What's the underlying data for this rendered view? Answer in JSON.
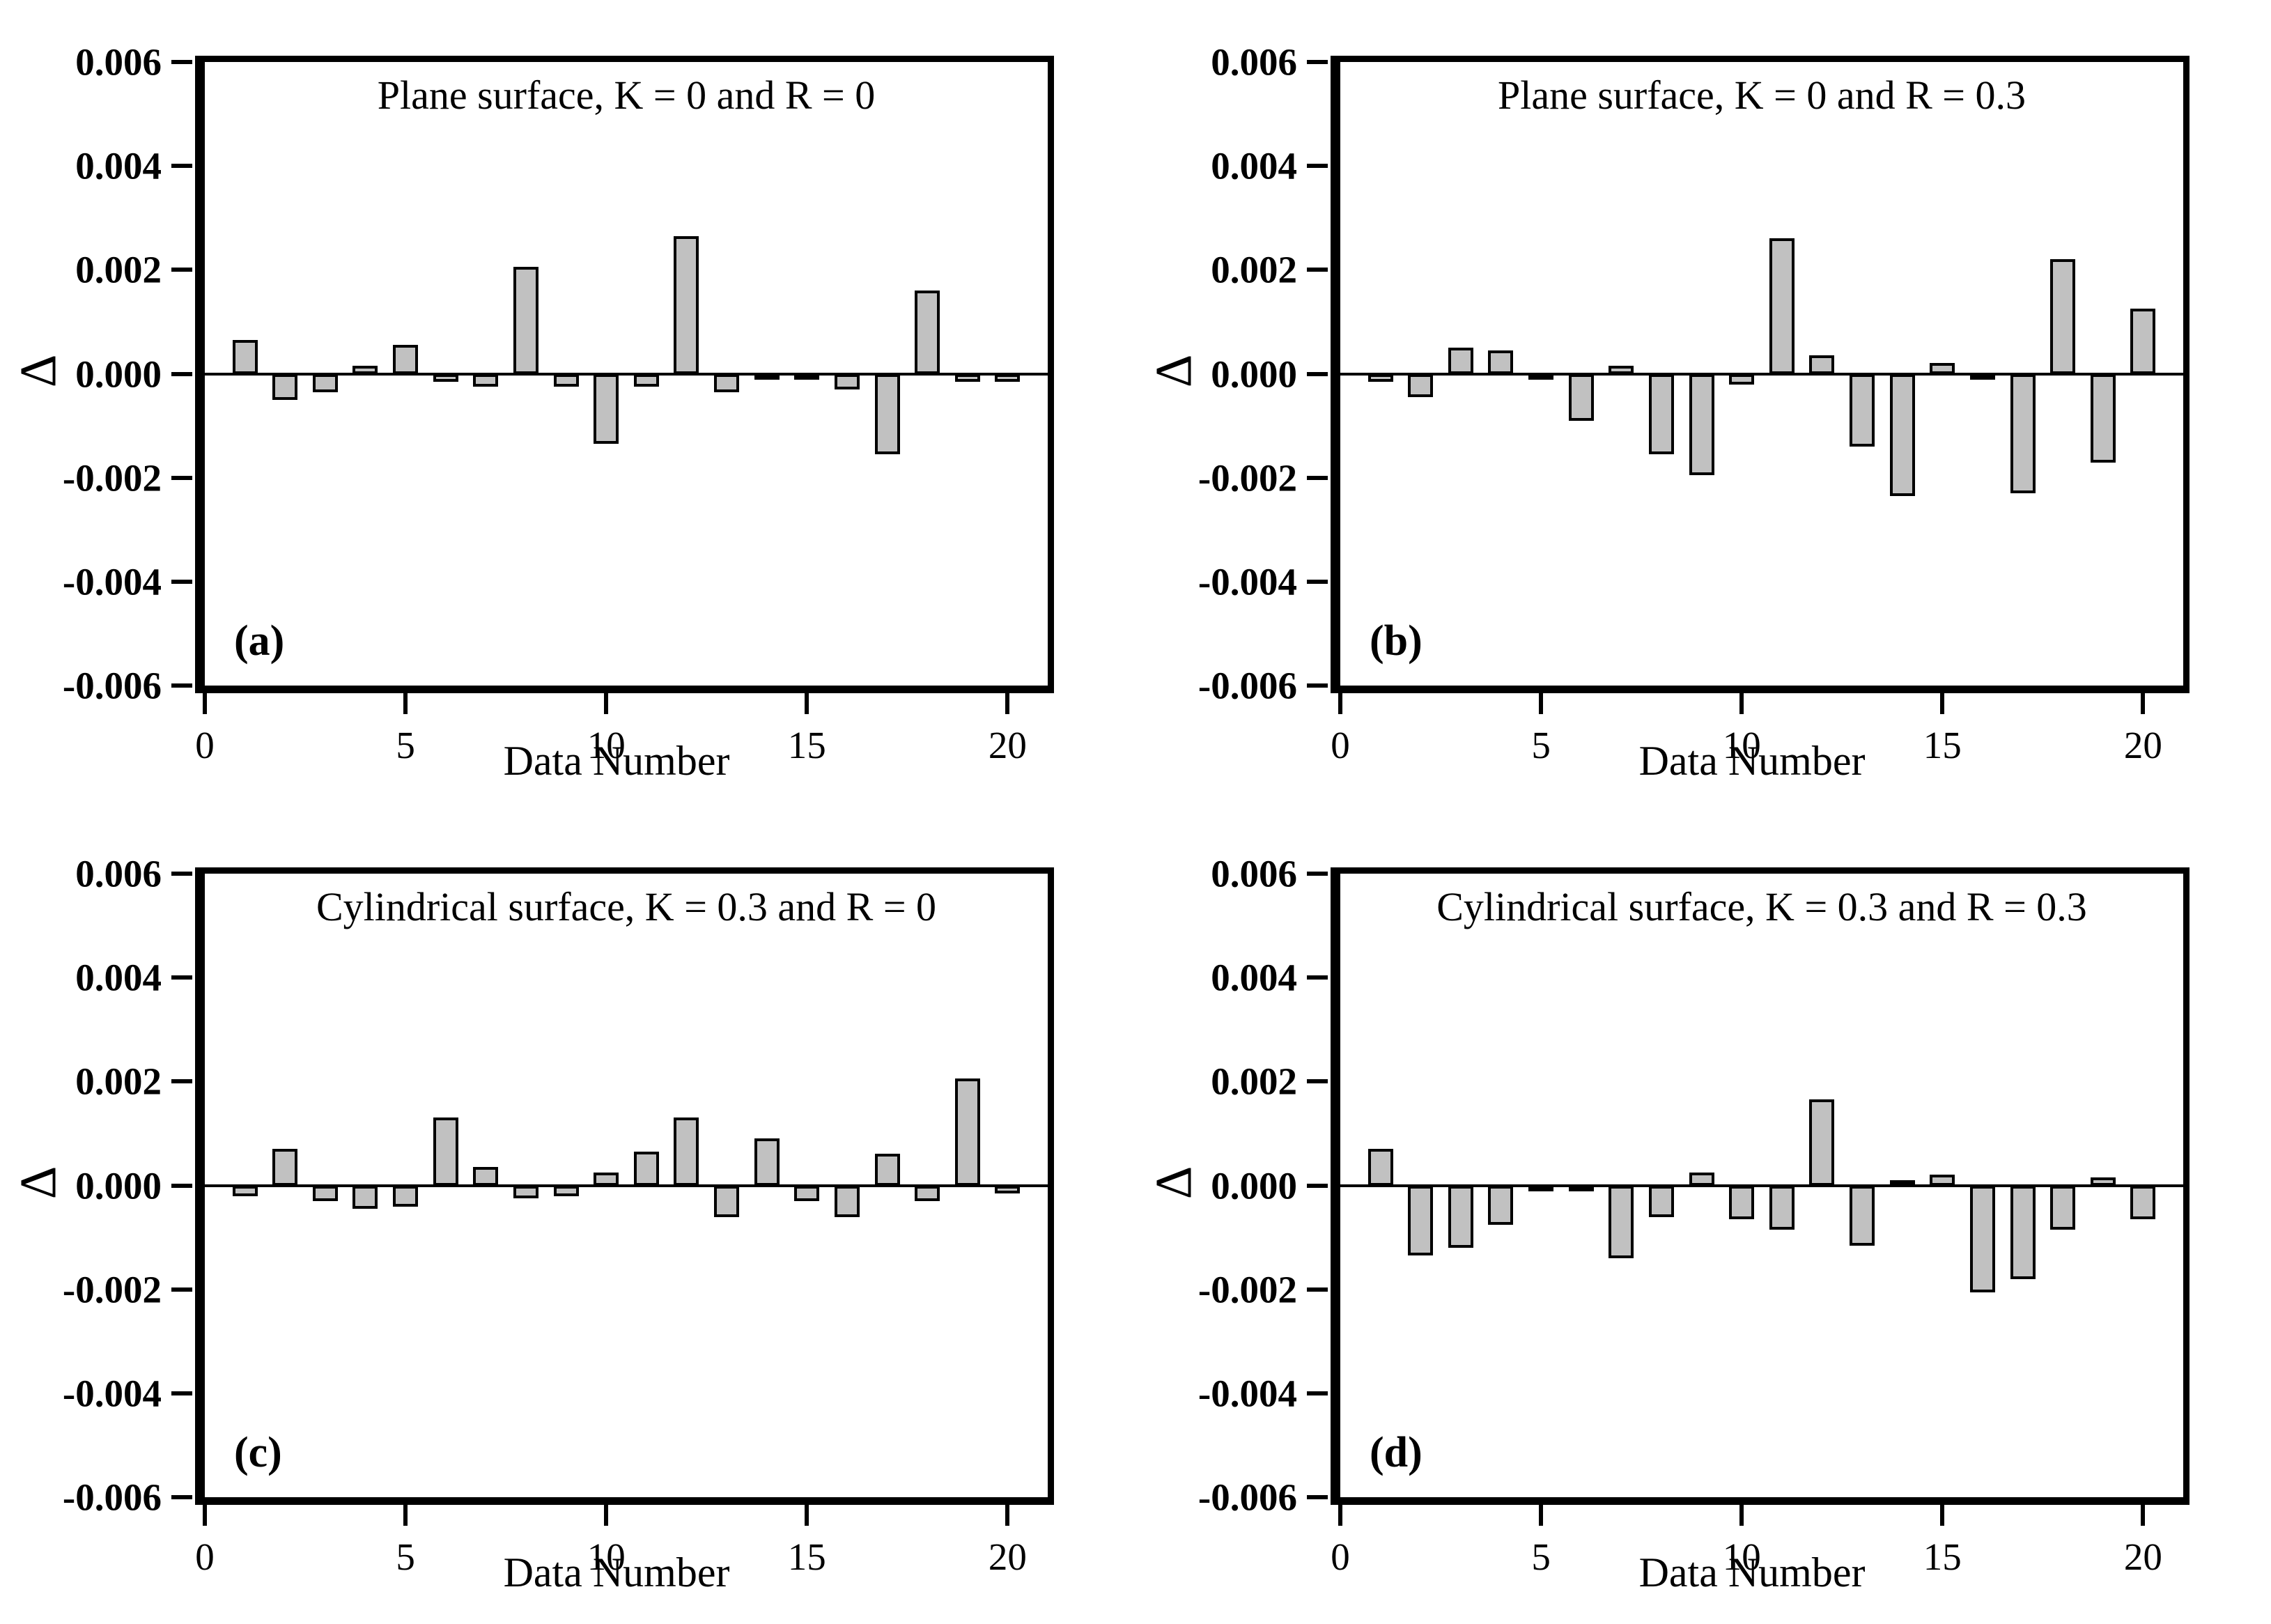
{
  "figure": {
    "background_color": "#ffffff",
    "bar_fill_color": "#c1c1c1",
    "line_color": "#000000",
    "xlabel": "Data Number",
    "ylabel": "Δ"
  },
  "chart_data": [
    {
      "type": "bar",
      "panel_label": "(a)",
      "title": "Plane surface, K = 0 and R = 0",
      "xlabel": "Data Number",
      "ylabel": "Δ",
      "categories": [
        1,
        2,
        3,
        4,
        5,
        6,
        7,
        8,
        9,
        10,
        11,
        12,
        13,
        14,
        15,
        16,
        17,
        18,
        19,
        20
      ],
      "values": [
        0.0006,
        -0.00045,
        -0.0003,
        0.0001,
        0.0005,
        -0.0001,
        -0.0002,
        0.002,
        -0.0002,
        -0.0013,
        -0.0002,
        0.0026,
        -0.0003,
        -5e-05,
        -5e-05,
        -0.00025,
        -0.0015,
        0.00155,
        -0.0001,
        -0.0001
      ],
      "xlim": [
        0,
        21
      ],
      "ylim": [
        -0.006,
        0.006
      ],
      "x_ticks": [
        0,
        5,
        10,
        15,
        20
      ],
      "y_ticks": [
        0.006,
        0.004,
        0.002,
        0.0,
        -0.002,
        -0.004,
        -0.006
      ],
      "grid": false,
      "legend": false
    },
    {
      "type": "bar",
      "panel_label": "(b)",
      "title": "Plane surface, K = 0 and R = 0.3",
      "xlabel": "Data Number",
      "ylabel": "Δ",
      "categories": [
        1,
        2,
        3,
        4,
        5,
        6,
        7,
        8,
        9,
        10,
        11,
        12,
        13,
        14,
        15,
        16,
        17,
        18,
        19,
        20
      ],
      "values": [
        -0.0001,
        -0.0004,
        0.00045,
        0.0004,
        -5e-05,
        -0.00085,
        0.0001,
        -0.0015,
        -0.0019,
        -0.00015,
        0.00255,
        0.0003,
        -0.00135,
        -0.0023,
        0.00015,
        -5e-05,
        -0.00225,
        0.00215,
        -0.00165,
        0.0012
      ],
      "xlim": [
        0,
        21
      ],
      "ylim": [
        -0.006,
        0.006
      ],
      "x_ticks": [
        0,
        5,
        10,
        15,
        20
      ],
      "y_ticks": [
        0.006,
        0.004,
        0.002,
        0.0,
        -0.002,
        -0.004,
        -0.006
      ],
      "grid": false,
      "legend": false
    },
    {
      "type": "bar",
      "panel_label": "(c)",
      "title": "Cylindrical surface, K = 0.3 and R = 0",
      "xlabel": "Data Number",
      "ylabel": "Δ",
      "categories": [
        1,
        2,
        3,
        4,
        5,
        6,
        7,
        8,
        9,
        10,
        11,
        12,
        13,
        14,
        15,
        16,
        17,
        18,
        19,
        20
      ],
      "values": [
        -0.00015,
        0.00065,
        -0.00025,
        -0.0004,
        -0.00035,
        0.00125,
        0.0003,
        -0.0002,
        -0.00015,
        0.0002,
        0.0006,
        0.00125,
        -0.00055,
        0.00085,
        -0.00025,
        -0.00055,
        0.00055,
        -0.00025,
        0.002,
        -0.0001
      ],
      "xlim": [
        0,
        21
      ],
      "ylim": [
        -0.006,
        0.006
      ],
      "x_ticks": [
        0,
        5,
        10,
        15,
        20
      ],
      "y_ticks": [
        0.006,
        0.004,
        0.002,
        0.0,
        -0.002,
        -0.004,
        -0.006
      ],
      "grid": false,
      "legend": false
    },
    {
      "type": "bar",
      "panel_label": "(d)",
      "title": "Cylindrical surface, K = 0.3 and R = 0.3",
      "xlabel": "Data Number",
      "ylabel": "Δ",
      "categories": [
        1,
        2,
        3,
        4,
        5,
        6,
        7,
        8,
        9,
        10,
        11,
        12,
        13,
        14,
        15,
        16,
        17,
        18,
        19,
        20
      ],
      "values": [
        0.00065,
        -0.0013,
        -0.00115,
        -0.0007,
        -5e-05,
        -5e-05,
        -0.00135,
        -0.00055,
        0.0002,
        -0.0006,
        -0.0008,
        0.0016,
        -0.0011,
        5e-05,
        0.00015,
        -0.002,
        -0.00175,
        -0.0008,
        0.0001,
        -0.0006
      ],
      "xlim": [
        0,
        21
      ],
      "ylim": [
        -0.006,
        0.006
      ],
      "x_ticks": [
        0,
        5,
        10,
        15,
        20
      ],
      "y_ticks": [
        0.006,
        0.004,
        0.002,
        0.0,
        -0.002,
        -0.004,
        -0.006
      ],
      "grid": false,
      "legend": false
    }
  ]
}
